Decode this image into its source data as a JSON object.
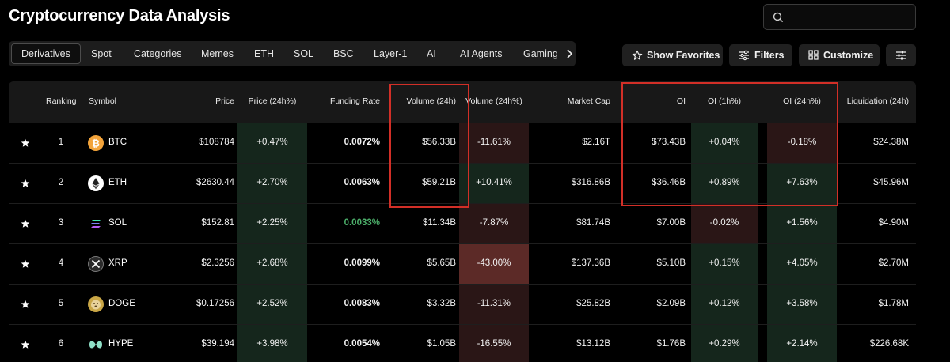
{
  "page": {
    "title": "Cryptocurrency Data Analysis"
  },
  "search": {
    "value": "",
    "placeholder": ""
  },
  "tabs": [
    "Derivatives",
    "Spot",
    "Categories",
    "Memes",
    "ETH",
    "SOL",
    "BSC",
    "Layer-1",
    "AI",
    "AI Agents",
    "Gaming"
  ],
  "active_tab": "Derivatives",
  "toolbar": {
    "show_favorites": "Show Favorites",
    "filters": "Filters",
    "customize": "Customize"
  },
  "columns": [
    "Ranking",
    "Symbol",
    "Price",
    "Price (24h%)",
    "Funding Rate",
    "Volume (24h)",
    "Volume (24h%)",
    "Market Cap",
    "OI",
    "OI (1h%)",
    "OI (24h%)",
    "Liquidation (24h)"
  ],
  "rows": [
    {
      "rank": "1",
      "symbol": "BTC",
      "price": "$108784",
      "price_24h": "+0.47%",
      "funding": "0.0072%",
      "volume": "$56.33B",
      "volume_24h": "-11.61%",
      "mcap": "$2.16T",
      "oi": "$73.43B",
      "oi_1h": "+0.04%",
      "oi_24h": "-0.18%",
      "liq": "$24.38M"
    },
    {
      "rank": "2",
      "symbol": "ETH",
      "price": "$2630.44",
      "price_24h": "+2.70%",
      "funding": "0.0063%",
      "volume": "$59.21B",
      "volume_24h": "+10.41%",
      "mcap": "$316.86B",
      "oi": "$36.46B",
      "oi_1h": "+0.89%",
      "oi_24h": "+7.63%",
      "liq": "$45.96M"
    },
    {
      "rank": "3",
      "symbol": "SOL",
      "price": "$152.81",
      "price_24h": "+2.25%",
      "funding": "0.0033%",
      "volume": "$11.34B",
      "volume_24h": "-7.87%",
      "mcap": "$81.74B",
      "oi": "$7.00B",
      "oi_1h": "-0.02%",
      "oi_24h": "+1.56%",
      "liq": "$4.90M"
    },
    {
      "rank": "4",
      "symbol": "XRP",
      "price": "$2.3256",
      "price_24h": "+2.68%",
      "funding": "0.0099%",
      "volume": "$5.65B",
      "volume_24h": "-43.00%",
      "mcap": "$137.36B",
      "oi": "$5.10B",
      "oi_1h": "+0.15%",
      "oi_24h": "+4.05%",
      "liq": "$2.70M"
    },
    {
      "rank": "5",
      "symbol": "DOGE",
      "price": "$0.17256",
      "price_24h": "+2.52%",
      "funding": "0.0083%",
      "volume": "$3.32B",
      "volume_24h": "-11.31%",
      "mcap": "$25.82B",
      "oi": "$2.09B",
      "oi_1h": "+0.12%",
      "oi_24h": "+3.58%",
      "liq": "$1.78M"
    },
    {
      "rank": "6",
      "symbol": "HYPE",
      "price": "$39.194",
      "price_24h": "+3.98%",
      "funding": "0.0054%",
      "volume": "$1.05B",
      "volume_24h": "-16.55%",
      "mcap": "$13.12B",
      "oi": "$1.76B",
      "oi_1h": "+0.29%",
      "oi_24h": "+2.14%",
      "liq": "$226.68K"
    }
  ],
  "icons": {
    "BTC": "bitcoin-icon",
    "ETH": "ethereum-icon",
    "SOL": "solana-icon",
    "XRP": "xrp-icon",
    "DOGE": "dogecoin-icon",
    "HYPE": "hyperliquid-icon"
  },
  "colors": {
    "positive_bg": "#15261c",
    "negative_bg": "#2a1616",
    "strong_negative_bg": "#5c2a27",
    "positive_text": "#4caf6a",
    "highlight": "#d22f27",
    "btc": "#f2a33a",
    "doge": "#c9a646",
    "hype": "#8fe0c7"
  }
}
